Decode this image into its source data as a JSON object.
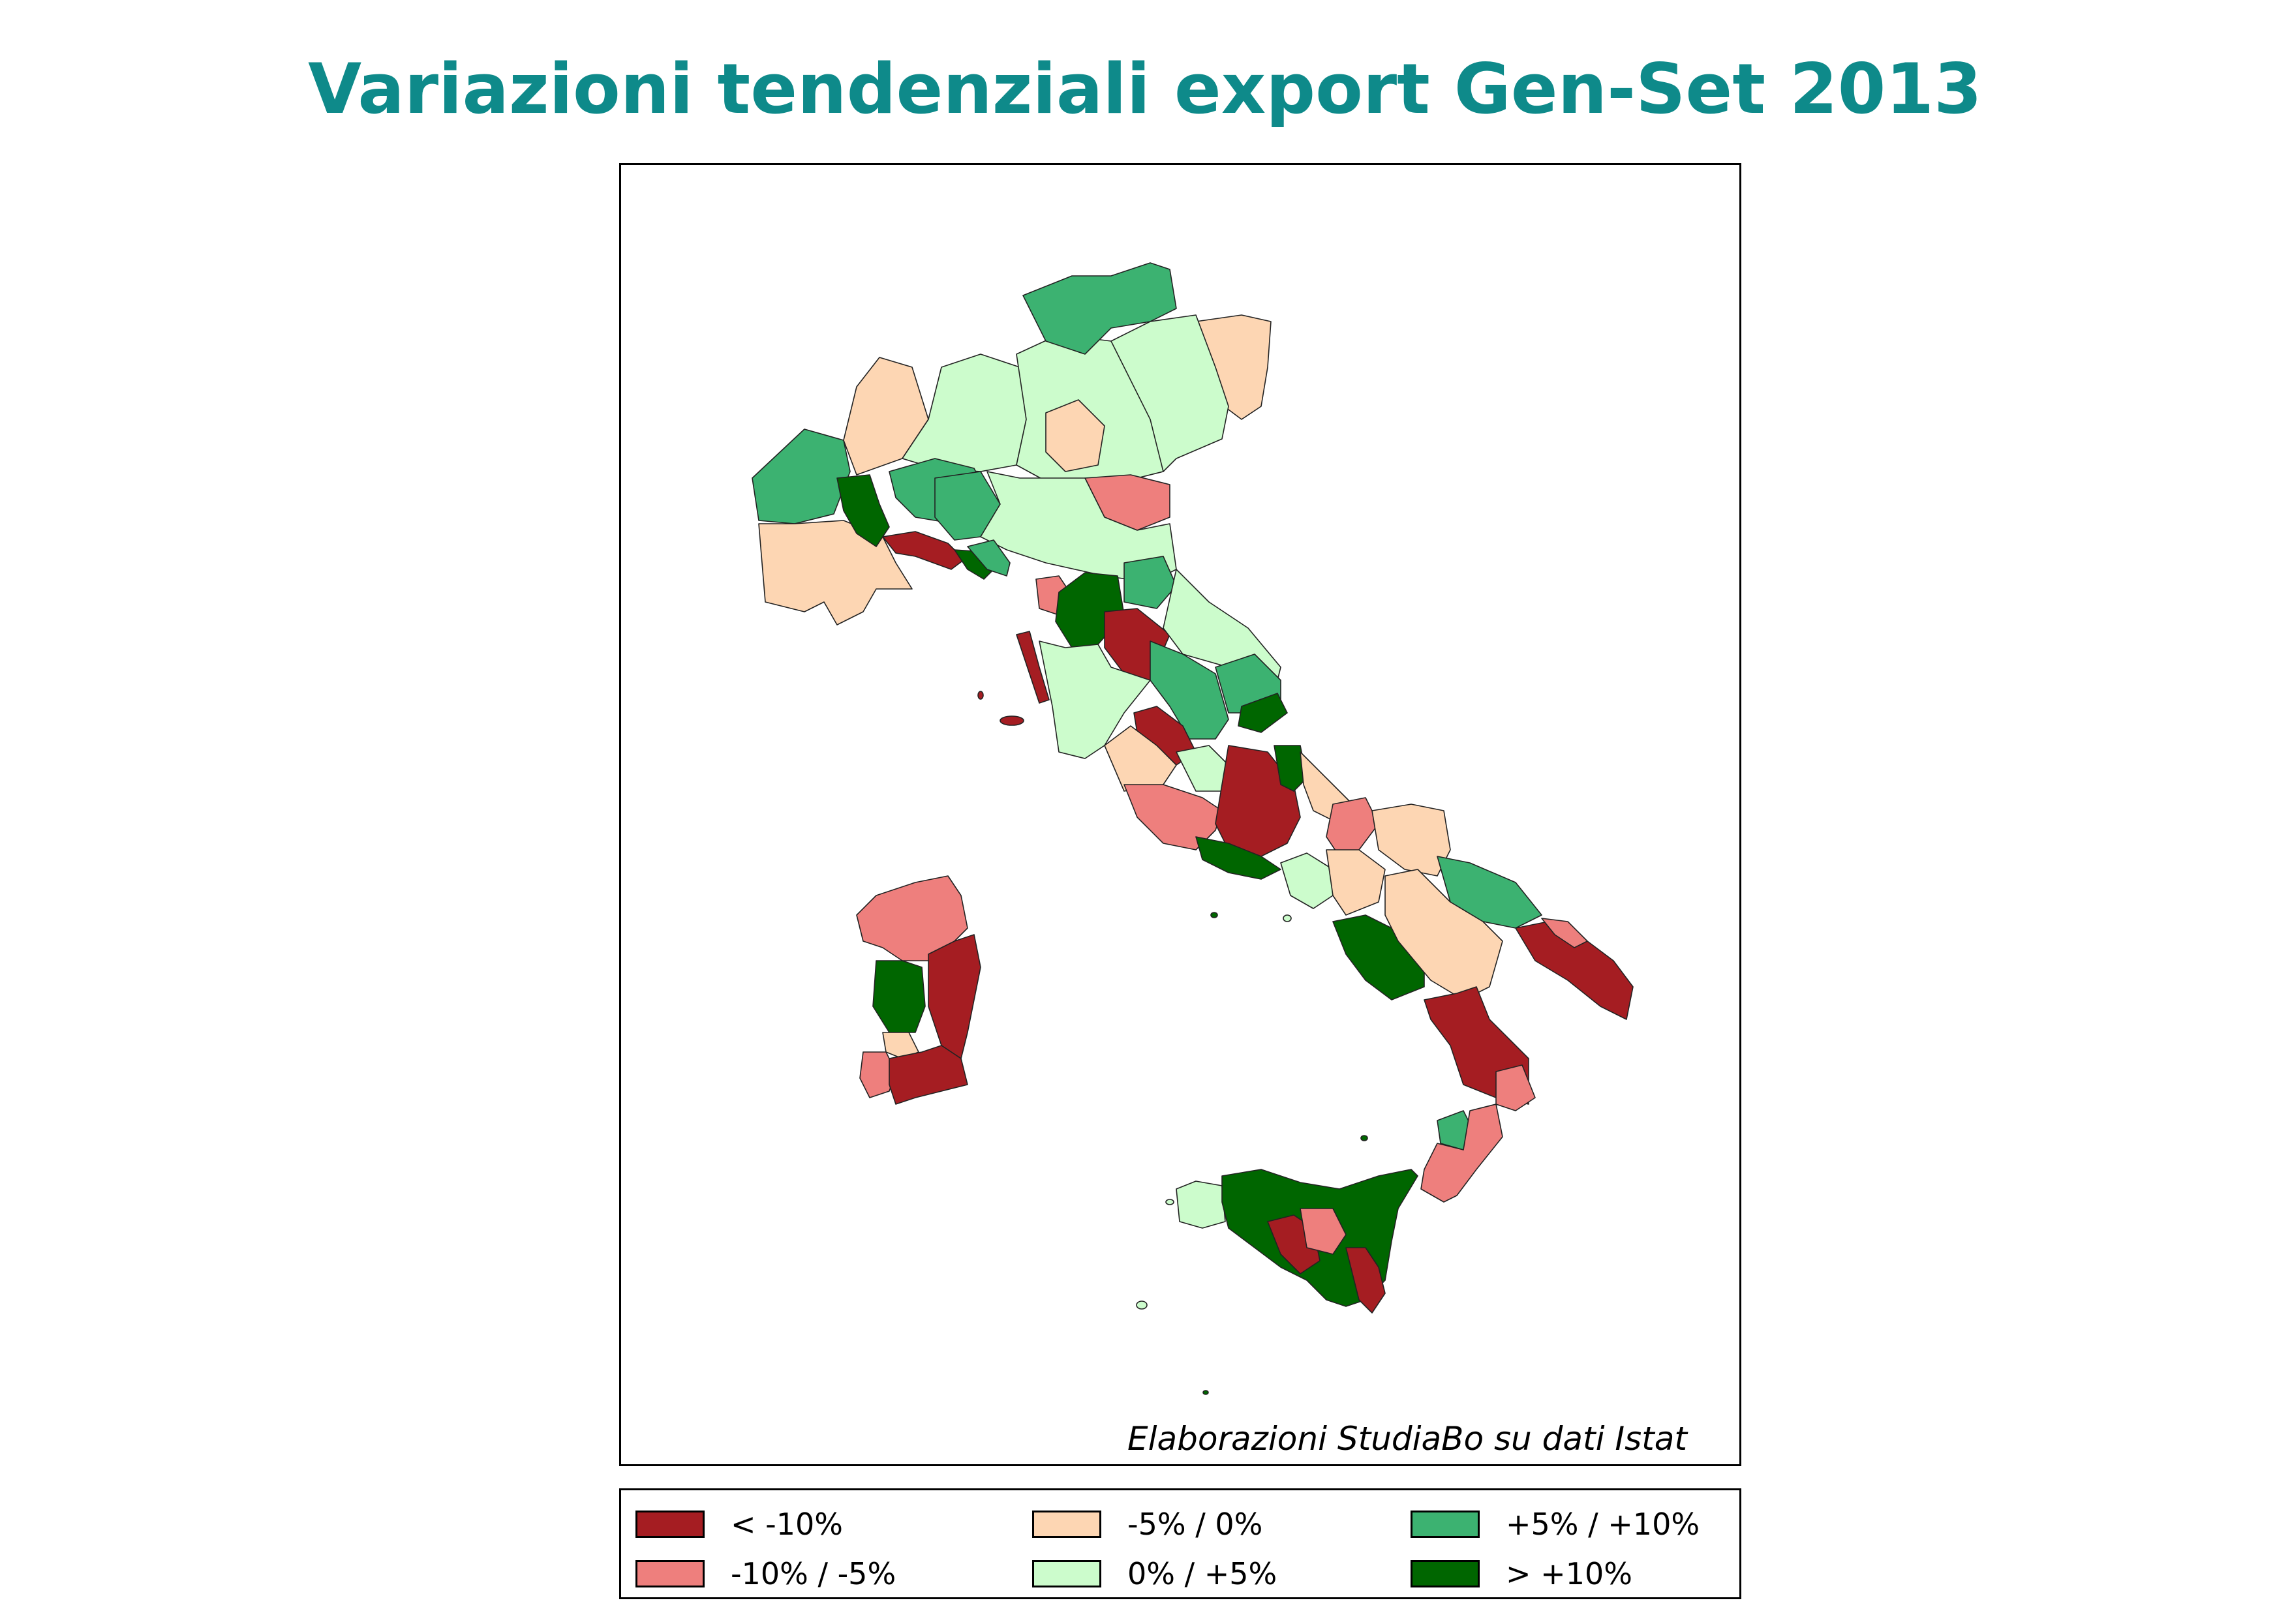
{
  "title": "Variazioni tendenziali export Gen-Set 2013",
  "credit": "Elaborazioni StudiaBo su dati Istat",
  "legend": [
    {
      "label": "< -10%",
      "color": "#a51d22"
    },
    {
      "label": "-10% / -5%",
      "color": "#ee7f7d"
    },
    {
      "label": "-5% / 0%",
      "color": "#fdd6b3"
    },
    {
      "label": "0% / +5%",
      "color": "#ccfccc"
    },
    {
      "label": "+5% / +10%",
      "color": "#3cb271"
    },
    {
      "label": "> +10%",
      "color": "#006600"
    }
  ],
  "map_regions": [
    {
      "name": "aosta",
      "class": "+5% / +10%",
      "color": "#3cb271"
    },
    {
      "name": "piemonte-ovest",
      "class": "-5% / 0%",
      "color": "#fdd6b3"
    },
    {
      "name": "piemonte-nord",
      "class": "-5% / 0%",
      "color": "#fdd6b3"
    },
    {
      "name": "torino-hills",
      "class": "> +10%",
      "color": "#006600"
    },
    {
      "name": "lombardia-ovest",
      "class": "0% / +5%",
      "color": "#ccfccc"
    },
    {
      "name": "lombardia-est",
      "class": "0% / +5%",
      "color": "#ccfccc"
    },
    {
      "name": "alessandria",
      "class": "+5% / +10%",
      "color": "#3cb271"
    },
    {
      "name": "pavia",
      "class": "+5% / +10%",
      "color": "#3cb271"
    },
    {
      "name": "alto-adige",
      "class": "+5% / +10%",
      "color": "#3cb271"
    },
    {
      "name": "friuli",
      "class": "-5% / 0%",
      "color": "#fdd6b3"
    },
    {
      "name": "veneto",
      "class": "0% / +5%",
      "color": "#ccfccc"
    },
    {
      "name": "trentino",
      "class": "-5% / 0%",
      "color": "#fdd6b3"
    },
    {
      "name": "ferrara",
      "class": "-10% / -5%",
      "color": "#ee7f7d"
    },
    {
      "name": "emilia",
      "class": "0% / +5%",
      "color": "#ccfccc"
    },
    {
      "name": "genova",
      "class": "< -10%",
      "color": "#a51d22"
    },
    {
      "name": "la-spezia",
      "class": "> +10%",
      "color": "#006600"
    },
    {
      "name": "massa",
      "class": "+5% / +10%",
      "color": "#3cb271"
    },
    {
      "name": "lucca",
      "class": "-10% / -5%",
      "color": "#ee7f7d"
    },
    {
      "name": "firenze",
      "class": "> +10%",
      "color": "#006600"
    },
    {
      "name": "arezzo",
      "class": "< -10%",
      "color": "#a51d22"
    },
    {
      "name": "pesaro",
      "class": "+5% / +10%",
      "color": "#3cb271"
    },
    {
      "name": "livorno",
      "class": "< -10%",
      "color": "#a51d22"
    },
    {
      "name": "siena-grosseto",
      "class": "0% / +5%",
      "color": "#ccfccc"
    },
    {
      "name": "marche",
      "class": "0% / +5%",
      "color": "#ccfccc"
    },
    {
      "name": "umbria",
      "class": "+5% / +10%",
      "color": "#3cb271"
    },
    {
      "name": "ascoli",
      "class": "+5% / +10%",
      "color": "#3cb271"
    },
    {
      "name": "teramo",
      "class": "> +10%",
      "color": "#006600"
    },
    {
      "name": "terni",
      "class": "< -10%",
      "color": "#a51d22"
    },
    {
      "name": "viterbo",
      "class": "-5% / 0%",
      "color": "#fdd6b3"
    },
    {
      "name": "rieti",
      "class": "0% / +5%",
      "color": "#ccfccc"
    },
    {
      "name": "roma",
      "class": "-10% / -5%",
      "color": "#ee7f7d"
    },
    {
      "name": "abruzzo",
      "class": "< -10%",
      "color": "#a51d22"
    },
    {
      "name": "chieti",
      "class": "> +10%",
      "color": "#006600"
    },
    {
      "name": "pescara",
      "class": "-5% / 0%",
      "color": "#fdd6b3"
    },
    {
      "name": "latina",
      "class": "> +10%",
      "color": "#006600"
    },
    {
      "name": "molise",
      "class": "-10% / -5%",
      "color": "#ee7f7d"
    },
    {
      "name": "foggia",
      "class": "-5% / 0%",
      "color": "#fdd6b3"
    },
    {
      "name": "caserta",
      "class": "0% / +5%",
      "color": "#ccfccc"
    },
    {
      "name": "benevento",
      "class": "-5% / 0%",
      "color": "#fdd6b3"
    },
    {
      "name": "bari",
      "class": "+5% / +10%",
      "color": "#3cb271"
    },
    {
      "name": "salerno",
      "class": "> +10%",
      "color": "#006600"
    },
    {
      "name": "potenza",
      "class": "-5% / 0%",
      "color": "#fdd6b3"
    },
    {
      "name": "taranto-brindisi",
      "class": "< -10%",
      "color": "#a51d22"
    },
    {
      "name": "brindisi-coast",
      "class": "-10% / -5%",
      "color": "#ee7f7d"
    },
    {
      "name": "cosenza",
      "class": "< -10%",
      "color": "#a51d22"
    },
    {
      "name": "crotone",
      "class": "-10% / -5%",
      "color": "#ee7f7d"
    },
    {
      "name": "vibo",
      "class": "+5% / +10%",
      "color": "#3cb271"
    },
    {
      "name": "reggio",
      "class": "-10% / -5%",
      "color": "#ee7f7d"
    },
    {
      "name": "trapani",
      "class": "0% / +5%",
      "color": "#ccfccc"
    },
    {
      "name": "sicilia",
      "class": "> +10%",
      "color": "#006600"
    },
    {
      "name": "caltanissetta",
      "class": "< -10%",
      "color": "#a51d22"
    },
    {
      "name": "enna",
      "class": "-10% / -5%",
      "color": "#ee7f7d"
    },
    {
      "name": "siracusa",
      "class": "< -10%",
      "color": "#a51d22"
    },
    {
      "name": "sassari",
      "class": "-10% / -5%",
      "color": "#ee7f7d"
    },
    {
      "name": "nuoro",
      "class": "< -10%",
      "color": "#a51d22"
    },
    {
      "name": "oristano",
      "class": "> +10%",
      "color": "#006600"
    },
    {
      "name": "medio-campidano",
      "class": "-5% / 0%",
      "color": "#fdd6b3"
    },
    {
      "name": "carbonia",
      "class": "-10% / -5%",
      "color": "#ee7f7d"
    },
    {
      "name": "cagliari",
      "class": "< -10%",
      "color": "#a51d22"
    }
  ]
}
